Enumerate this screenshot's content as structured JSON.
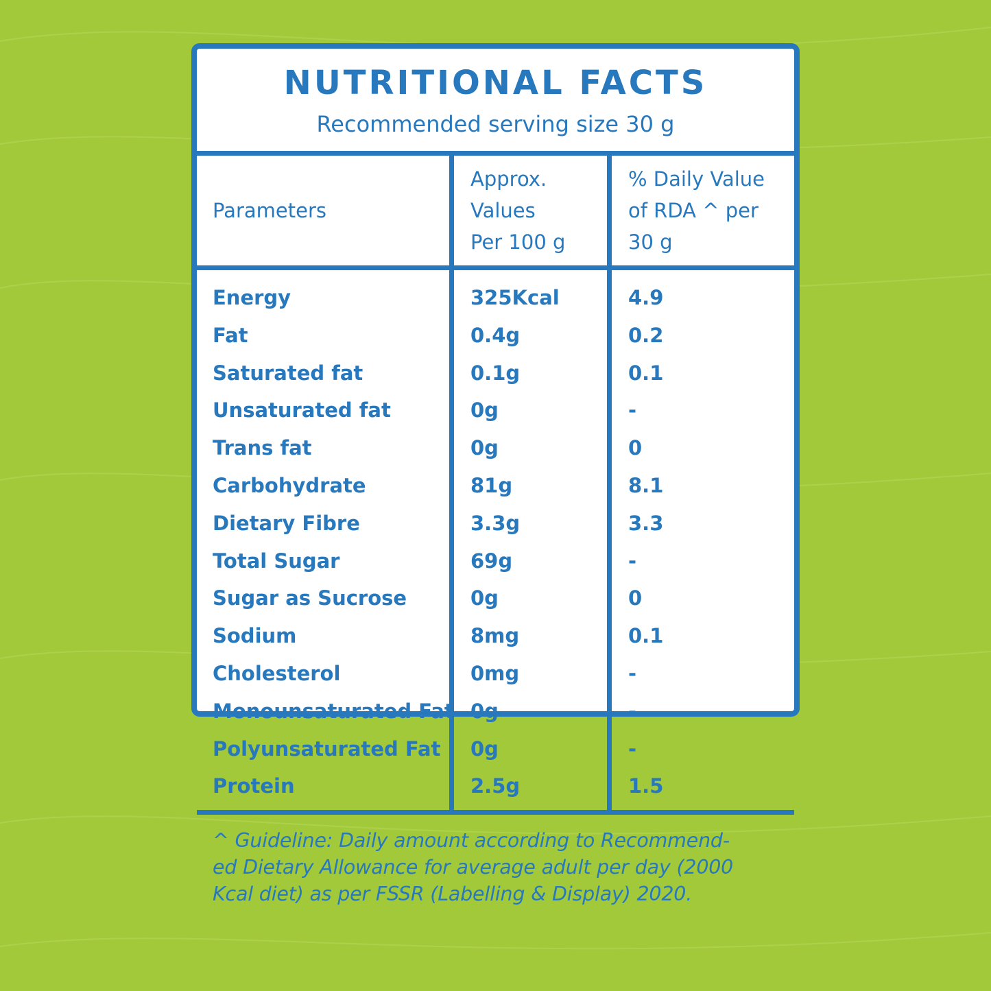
{
  "panel": {
    "title": "NUTRITIONAL FACTS",
    "subtitle": "Recommended serving size 30 g"
  },
  "table": {
    "headers": {
      "parameters": "Parameters",
      "values_line1": "Approx.",
      "values_line2": "Values",
      "values_line3": "Per 100 g",
      "dv_line1": "% Daily Value",
      "dv_line2": "of RDA ^ per",
      "dv_line3": "30 g"
    },
    "rows": [
      {
        "parameter": "Energy",
        "value": "325Kcal",
        "dv": "4.9"
      },
      {
        "parameter": "Fat",
        "value": "0.4g",
        "dv": "0.2"
      },
      {
        "parameter": "Saturated fat",
        "value": "0.1g",
        "dv": "0.1"
      },
      {
        "parameter": "Unsaturated fat",
        "value": "0g",
        "dv": "-"
      },
      {
        "parameter": "Trans fat",
        "value": "0g",
        "dv": "0"
      },
      {
        "parameter": "Carbohydrate",
        "value": "81g",
        "dv": "8.1"
      },
      {
        "parameter": "Dietary Fibre",
        "value": "3.3g",
        "dv": "3.3"
      },
      {
        "parameter": "Total Sugar",
        "value": "69g",
        "dv": "-"
      },
      {
        "parameter": "Sugar as Sucrose",
        "value": "0g",
        "dv": "0"
      },
      {
        "parameter": "Sodium",
        "value": "8mg",
        "dv": "0.1"
      },
      {
        "parameter": "Cholesterol",
        "value": "0mg",
        "dv": "-"
      },
      {
        "parameter": "Monounsaturated Fat",
        "value": "0g",
        "dv": "-"
      },
      {
        "parameter": "Polyunsaturated Fat",
        "value": "0g",
        "dv": "-"
      },
      {
        "parameter": "Protein",
        "value": "2.5g",
        "dv": "1.5"
      }
    ]
  },
  "footnote": {
    "line1": "^ Guideline: Daily amount according to Recommend-",
    "line2": "ed Dietary Allowance for average adult per day (2000",
    "line3": "Kcal diet) as per FSSR (Labelling & Display) 2020."
  },
  "colors": {
    "background": "#a2c93a",
    "accent": "#2878bd",
    "panel": "#ffffff"
  }
}
